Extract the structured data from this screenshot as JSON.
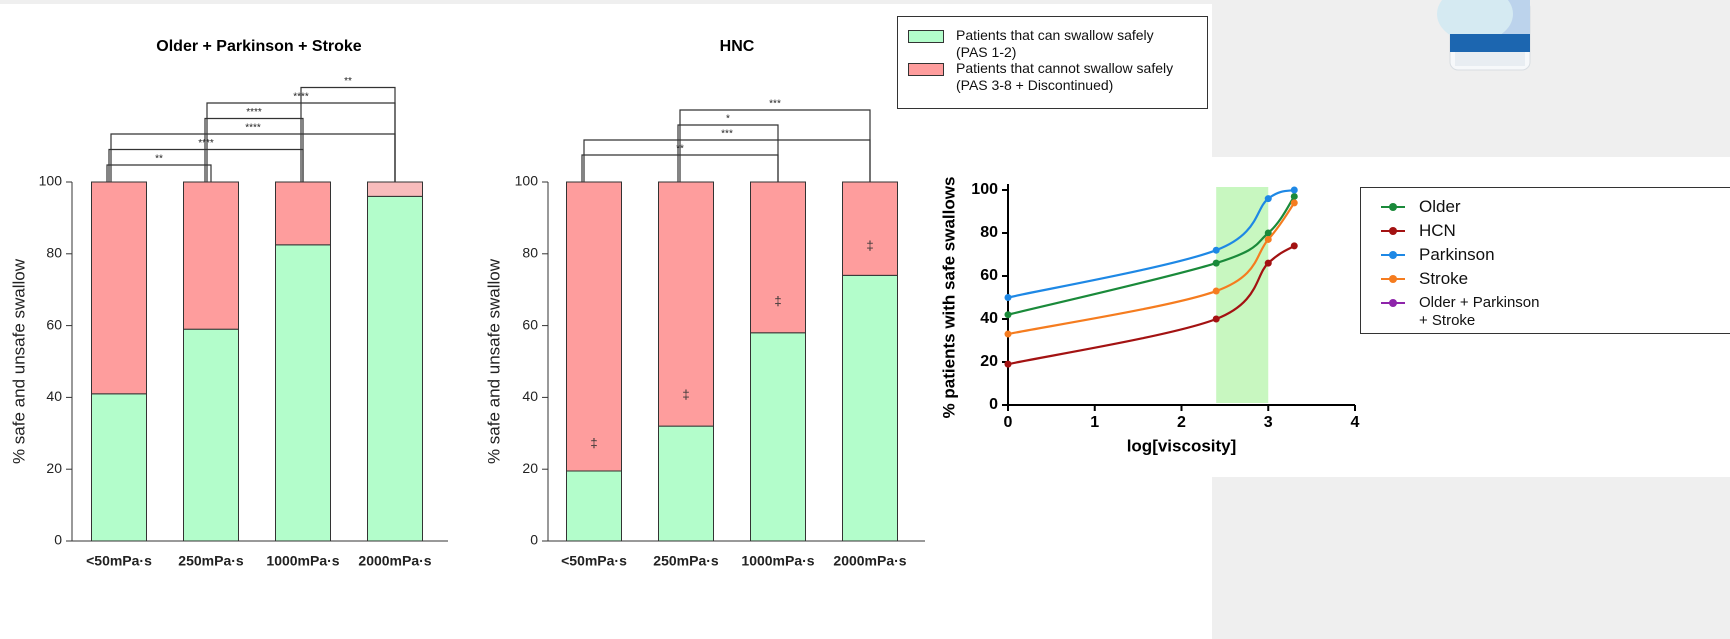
{
  "chart_data": [
    {
      "type": "stacked_bar",
      "title": "Older + Parkinson + Stroke",
      "y_label": "% safe and unsafe swallow",
      "categories": [
        "<50mPa·s",
        "250mPa·s",
        "1000mPa·s",
        "2000mPa·s"
      ],
      "series": [
        {
          "name": "Patients that can swallow safely\n(PAS 1-2)",
          "color": "#b3fdcb",
          "values": [
            41,
            59,
            82.5,
            96
          ]
        },
        {
          "name": "Patients that cannot swallow safely\n(PAS 3-8 + Discontinued)",
          "color": "#fe9d9d",
          "values": [
            59,
            41,
            17.5,
            4
          ],
          "point_colors": [
            "#fe9d9d",
            "#fe9d9d",
            "#fe9d9d",
            "#f8bcbc"
          ]
        }
      ],
      "ylim": [
        0,
        100
      ],
      "yticks": [
        0,
        20,
        40,
        60,
        80,
        100
      ],
      "significance": [
        {
          "from": 0,
          "to": 1,
          "label": "**"
        },
        {
          "from": 0,
          "to": 2,
          "label": "****"
        },
        {
          "from": 0,
          "to": 3,
          "label": "****"
        },
        {
          "from": 1,
          "to": 2,
          "label": "****"
        },
        {
          "from": 1,
          "to": 3,
          "label": "****"
        },
        {
          "from": 2,
          "to": 3,
          "label": "**"
        }
      ]
    },
    {
      "type": "stacked_bar",
      "title": "HNC",
      "y_label": "% safe and unsafe swallow",
      "categories": [
        "<50mPa·s",
        "250mPa·s",
        "1000mPa·s",
        "2000mPa·s"
      ],
      "series": [
        {
          "color": "#b3fdcb",
          "values": [
            19.5,
            32,
            58,
            74
          ]
        },
        {
          "color": "#fe9d9d",
          "values": [
            80.5,
            68,
            42,
            26
          ]
        }
      ],
      "ylim": [
        0,
        100
      ],
      "yticks": [
        0,
        20,
        40,
        60,
        80,
        100
      ],
      "marker_labels": [
        "‡",
        "‡",
        "‡",
        "‡"
      ],
      "marker_y": [
        27,
        40.5,
        66.5,
        82
      ],
      "significance": [
        {
          "from": 0,
          "to": 2,
          "label": "**"
        },
        {
          "from": 0,
          "to": 3,
          "label": "***"
        },
        {
          "from": 1,
          "to": 2,
          "label": "*"
        },
        {
          "from": 1,
          "to": 3,
          "label": "***"
        }
      ]
    },
    {
      "type": "line",
      "x_label": "log[viscosity]",
      "y_label": "% patients with safe swallows",
      "x": [
        0,
        2.4,
        3,
        3.3
      ],
      "series": [
        {
          "name": "Older",
          "color": "#1a8a3a",
          "values": [
            42,
            66,
            80,
            97
          ]
        },
        {
          "name": "HCN",
          "color": "#a31212",
          "values": [
            19,
            40,
            66,
            74
          ]
        },
        {
          "name": "Parkinson",
          "color": "#1e88e5",
          "values": [
            50,
            72,
            96,
            100
          ]
        },
        {
          "name": "Stroke",
          "color": "#f57c1f",
          "values": [
            33,
            53,
            77,
            94
          ]
        },
        {
          "name": "Older + Parkinson\n+ Stroke",
          "color": "#8e24aa",
          "values": [
            null,
            null,
            null,
            null
          ]
        }
      ],
      "highlight_x": [
        2.4,
        3
      ],
      "highlight_color": "#c8f7c0",
      "xlim": [
        0,
        4
      ],
      "xticks": [
        0,
        1,
        2,
        3,
        4
      ],
      "ylim": [
        0,
        100
      ],
      "yticks": [
        0,
        20,
        40,
        60,
        80,
        100
      ]
    }
  ]
}
